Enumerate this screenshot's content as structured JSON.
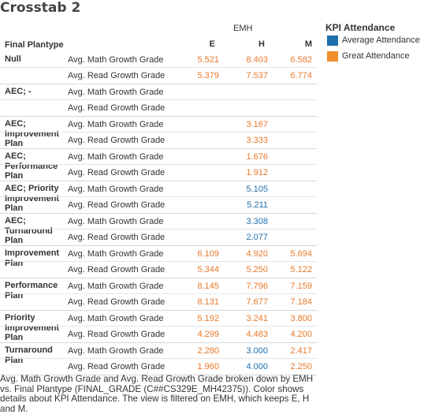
{
  "title": "Crosstab 2",
  "column_group_label": "EMH",
  "row_header_label": "Final Plantype",
  "columns": [
    "E",
    "H",
    "M"
  ],
  "legend": {
    "title": "KPI Attendance",
    "items": [
      {
        "label": "Average Attendance",
        "color": "#1f6fae"
      },
      {
        "label": "Great Attendance",
        "color": "#f28e2b"
      }
    ]
  },
  "colors": {
    "Average Attendance": "#1f6fae",
    "Great Attendance": "#e8782a"
  },
  "caption": "Avg. Math Growth Grade and Avg. Read Growth Grade broken down by EMH vs. Final Plantype (FINAL_GRADE (C##CS329E_MH42375)).  Color shows details about KPI Attendance. The view is filtered on EMH, which keeps E, H and M.",
  "chart_data": {
    "type": "table",
    "title": "Crosstab 2",
    "measures": [
      "Avg. Math Growth Grade",
      "Avg. Read Growth Grade"
    ],
    "rows": [
      {
        "plantype": "Null",
        "cells": [
          {
            "measure": "Avg. Math Growth Grade",
            "values": [
              {
                "v": "5.521",
                "k": "Great Attendance"
              },
              {
                "v": "8.403",
                "k": "Great Attendance"
              },
              {
                "v": "6.582",
                "k": "Great Attendance"
              }
            ]
          },
          {
            "measure": "Avg. Read Growth Grade",
            "values": [
              {
                "v": "5.379",
                "k": "Great Attendance"
              },
              {
                "v": "7.537",
                "k": "Great Attendance"
              },
              {
                "v": "6.774",
                "k": "Great Attendance"
              }
            ]
          }
        ]
      },
      {
        "plantype": "AEC; -",
        "cells": [
          {
            "measure": "Avg. Math Growth Grade",
            "values": [
              null,
              null,
              null
            ]
          },
          {
            "measure": "Avg. Read Growth Grade",
            "values": [
              null,
              null,
              null
            ]
          }
        ]
      },
      {
        "plantype": "AEC; Improvement Plan",
        "cells": [
          {
            "measure": "Avg. Math Growth Grade",
            "values": [
              null,
              {
                "v": "3.167",
                "k": "Great Attendance"
              },
              null
            ]
          },
          {
            "measure": "Avg. Read Growth Grade",
            "values": [
              null,
              {
                "v": "3.333",
                "k": "Great Attendance"
              },
              null
            ]
          }
        ]
      },
      {
        "plantype": "AEC; Performance Plan",
        "cells": [
          {
            "measure": "Avg. Math Growth Grade",
            "values": [
              null,
              {
                "v": "1.676",
                "k": "Great Attendance"
              },
              null
            ]
          },
          {
            "measure": "Avg. Read Growth Grade",
            "values": [
              null,
              {
                "v": "1.912",
                "k": "Great Attendance"
              },
              null
            ]
          }
        ]
      },
      {
        "plantype": "AEC; Priority Improvement Plan",
        "cells": [
          {
            "measure": "Avg. Math Growth Grade",
            "values": [
              null,
              {
                "v": "5.105",
                "k": "Average Attendance"
              },
              null
            ]
          },
          {
            "measure": "Avg. Read Growth Grade",
            "values": [
              null,
              {
                "v": "5.211",
                "k": "Average Attendance"
              },
              null
            ]
          }
        ]
      },
      {
        "plantype": "AEC; Turnaround Plan",
        "cells": [
          {
            "measure": "Avg. Math Growth Grade",
            "values": [
              null,
              {
                "v": "3.308",
                "k": "Average Attendance"
              },
              null
            ]
          },
          {
            "measure": "Avg. Read Growth Grade",
            "values": [
              null,
              {
                "v": "2.077",
                "k": "Average Attendance"
              },
              null
            ]
          }
        ]
      },
      {
        "plantype": "Improvement Plan",
        "cells": [
          {
            "measure": "Avg. Math Growth Grade",
            "values": [
              {
                "v": "6.109",
                "k": "Great Attendance"
              },
              {
                "v": "4.920",
                "k": "Great Attendance"
              },
              {
                "v": "5.694",
                "k": "Great Attendance"
              }
            ]
          },
          {
            "measure": "Avg. Read Growth Grade",
            "values": [
              {
                "v": "5.344",
                "k": "Great Attendance"
              },
              {
                "v": "5.250",
                "k": "Great Attendance"
              },
              {
                "v": "5.122",
                "k": "Great Attendance"
              }
            ]
          }
        ]
      },
      {
        "plantype": "Performance Plan",
        "cells": [
          {
            "measure": "Avg. Math Growth Grade",
            "values": [
              {
                "v": "8.145",
                "k": "Great Attendance"
              },
              {
                "v": "7.796",
                "k": "Great Attendance"
              },
              {
                "v": "7.159",
                "k": "Great Attendance"
              }
            ]
          },
          {
            "measure": "Avg. Read Growth Grade",
            "values": [
              {
                "v": "8.131",
                "k": "Great Attendance"
              },
              {
                "v": "7.677",
                "k": "Great Attendance"
              },
              {
                "v": "7.184",
                "k": "Great Attendance"
              }
            ]
          }
        ]
      },
      {
        "plantype": "Priority Improvement Plan",
        "cells": [
          {
            "measure": "Avg. Math Growth Grade",
            "values": [
              {
                "v": "5.192",
                "k": "Great Attendance"
              },
              {
                "v": "3.241",
                "k": "Great Attendance"
              },
              {
                "v": "3.800",
                "k": "Great Attendance"
              }
            ]
          },
          {
            "measure": "Avg. Read Growth Grade",
            "values": [
              {
                "v": "4.299",
                "k": "Great Attendance"
              },
              {
                "v": "4.483",
                "k": "Great Attendance"
              },
              {
                "v": "4.200",
                "k": "Great Attendance"
              }
            ]
          }
        ]
      },
      {
        "plantype": "Turnaround Plan",
        "cells": [
          {
            "measure": "Avg. Math Growth Grade",
            "values": [
              {
                "v": "2.280",
                "k": "Great Attendance"
              },
              {
                "v": "3.000",
                "k": "Average Attendance"
              },
              {
                "v": "2.417",
                "k": "Great Attendance"
              }
            ]
          },
          {
            "measure": "Avg. Read Growth Grade",
            "values": [
              {
                "v": "1.960",
                "k": "Great Attendance"
              },
              {
                "v": "4.000",
                "k": "Average Attendance"
              },
              {
                "v": "2.250",
                "k": "Great Attendance"
              }
            ]
          }
        ]
      }
    ]
  }
}
